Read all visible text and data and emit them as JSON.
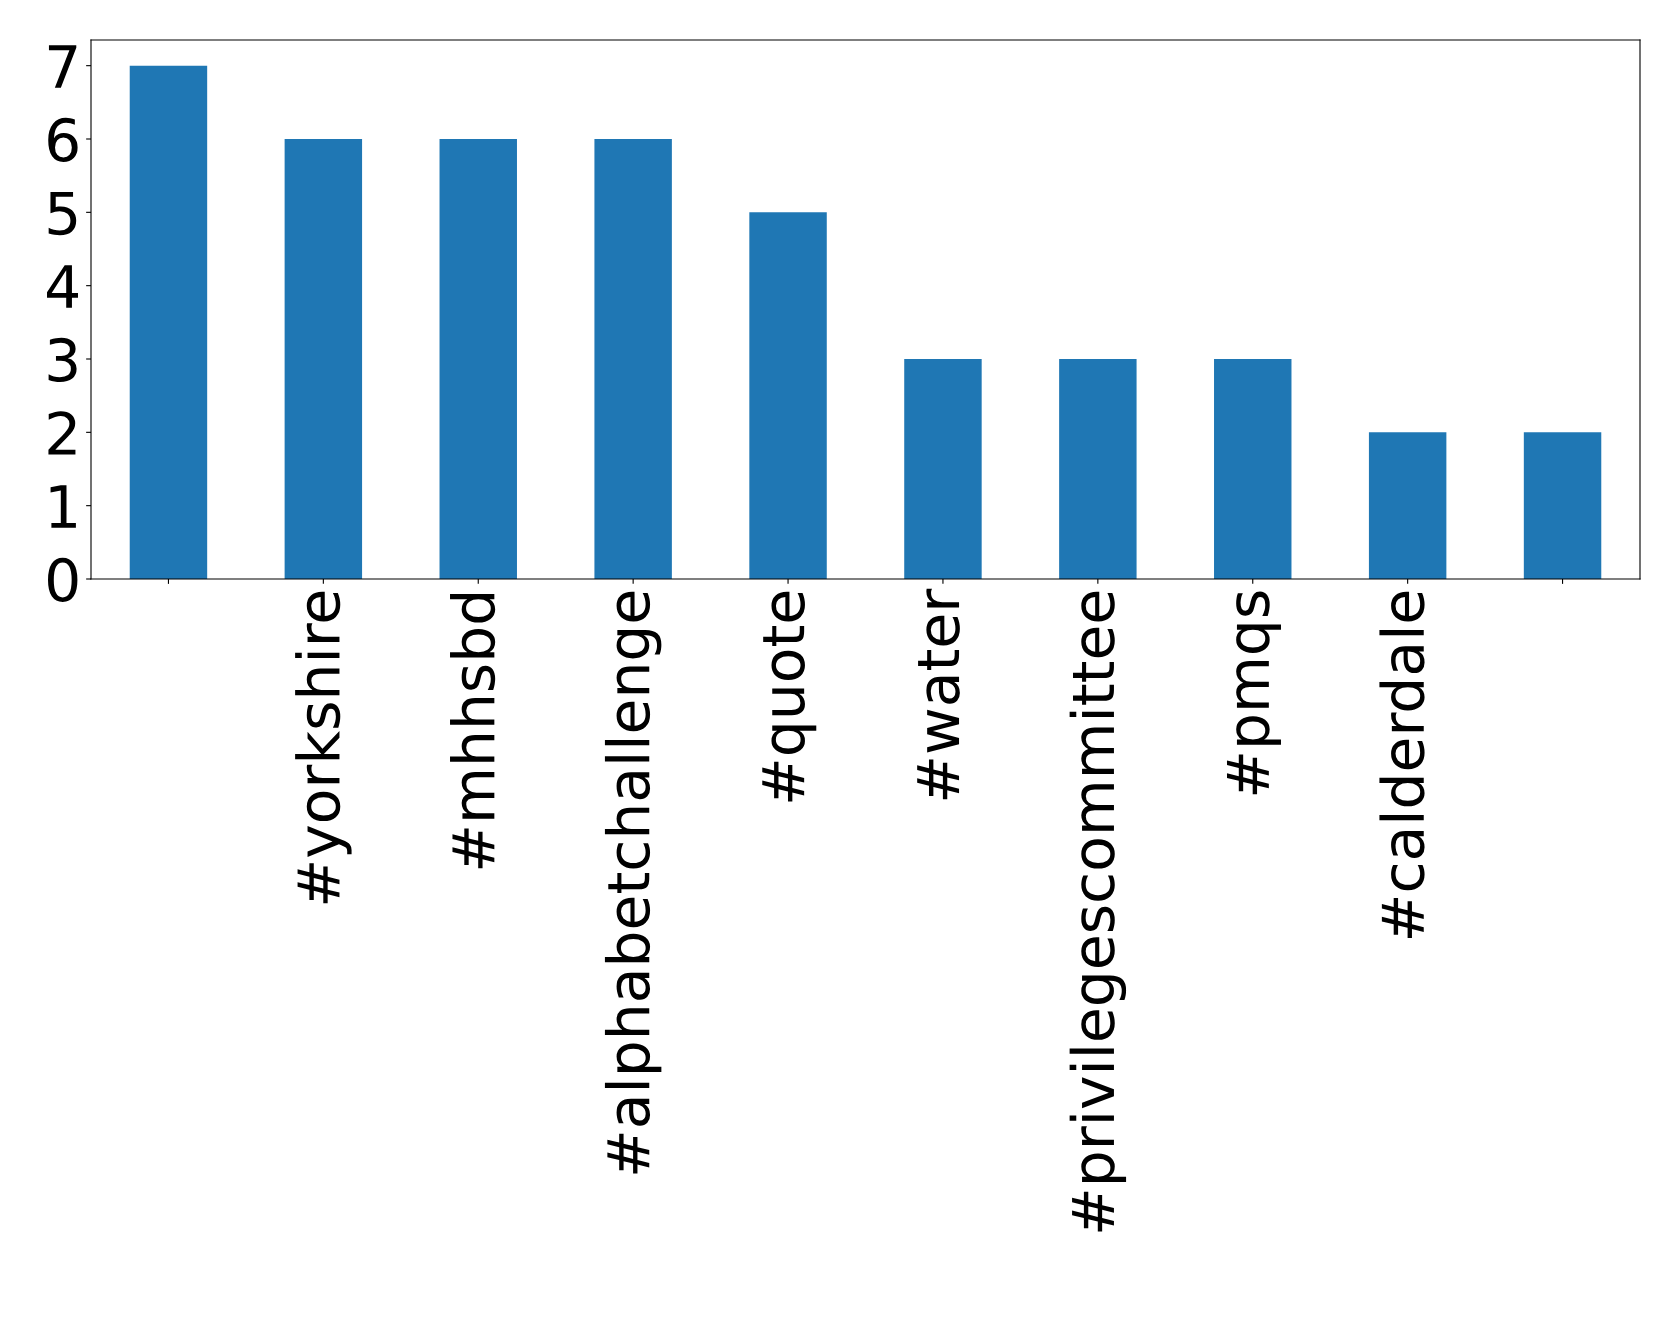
{
  "chart_data": {
    "type": "bar",
    "categories": [
      null,
      "#yorkshire",
      "#mhhsbd",
      "#alphabetchallenge",
      "#quote",
      "#water",
      "#privilegescommittee",
      "#pmqs",
      "#calderdale",
      null
    ],
    "values": [
      7,
      6,
      6,
      6,
      5,
      3,
      3,
      3,
      2,
      2
    ],
    "color": "#1f77b4",
    "ylim": [
      0,
      7.35
    ],
    "yticks": [
      0,
      1,
      2,
      3,
      4,
      5,
      6,
      7
    ],
    "grid": false
  }
}
